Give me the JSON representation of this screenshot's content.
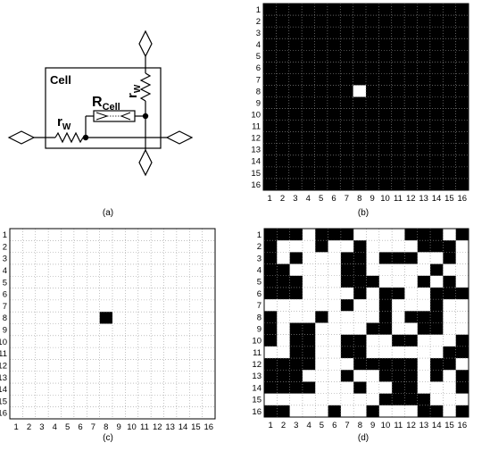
{
  "panel_labels": {
    "a": "(a)",
    "b": "(b)",
    "c": "(c)",
    "d": "(d)"
  },
  "circuit": {
    "cell_label": "Cell",
    "r_cell_main": "R",
    "r_cell_sub": "Cell",
    "rw_h_main": "r",
    "rw_h_sub": "W",
    "rw_v_main": "r",
    "rw_v_sub": "W"
  },
  "colors": {
    "on": "#000000",
    "off": "#ffffff",
    "grid_dot": "#9a9a9a"
  },
  "chart_data": [
    {
      "type": "heatmap",
      "panel": "b",
      "rows": 16,
      "cols": 16,
      "xticks": [
        "1",
        "2",
        "3",
        "4",
        "5",
        "6",
        "7",
        "8",
        "9",
        "10",
        "11",
        "12",
        "13",
        "14",
        "15",
        "16"
      ],
      "yticks": [
        "1",
        "2",
        "3",
        "4",
        "5",
        "6",
        "7",
        "8",
        "9",
        "10",
        "11",
        "12",
        "13",
        "14",
        "15",
        "16"
      ],
      "background": "black",
      "highlighted_cells": [
        [
          8,
          8
        ]
      ]
    },
    {
      "type": "heatmap",
      "panel": "c",
      "rows": 16,
      "cols": 16,
      "xticks": [
        "1",
        "2",
        "3",
        "4",
        "5",
        "6",
        "7",
        "8",
        "9",
        "10",
        "11",
        "12",
        "13",
        "14",
        "15",
        "16"
      ],
      "yticks": [
        "1",
        "2",
        "3",
        "4",
        "5",
        "6",
        "7",
        "8",
        "9",
        "10",
        "11",
        "12",
        "13",
        "14",
        "15",
        "16"
      ],
      "background": "white",
      "highlighted_cells": [
        [
          8,
          8
        ]
      ]
    },
    {
      "type": "heatmap",
      "panel": "d",
      "rows": 16,
      "cols": 16,
      "xticks": [
        "1",
        "2",
        "3",
        "4",
        "5",
        "6",
        "7",
        "8",
        "9",
        "10",
        "11",
        "12",
        "13",
        "14",
        "15",
        "16"
      ],
      "yticks": [
        "1",
        "2",
        "3",
        "4",
        "5",
        "6",
        "7",
        "8",
        "9",
        "10",
        "11",
        "12",
        "13",
        "14",
        "15",
        "16"
      ],
      "pattern": [
        "1110111000011101",
        "1000100100001110",
        "1010001101110010",
        "1100001100000100",
        "1110001110001010",
        "1110000101100111",
        "0000001001000100",
        "1000100001011100",
        "1011000011001100",
        "1011001100110001",
        "0011001100000011",
        "1111000111110110",
        "1110001001110101",
        "1111000100110001",
        "0000000001111000",
        "1100010010001101"
      ]
    }
  ]
}
